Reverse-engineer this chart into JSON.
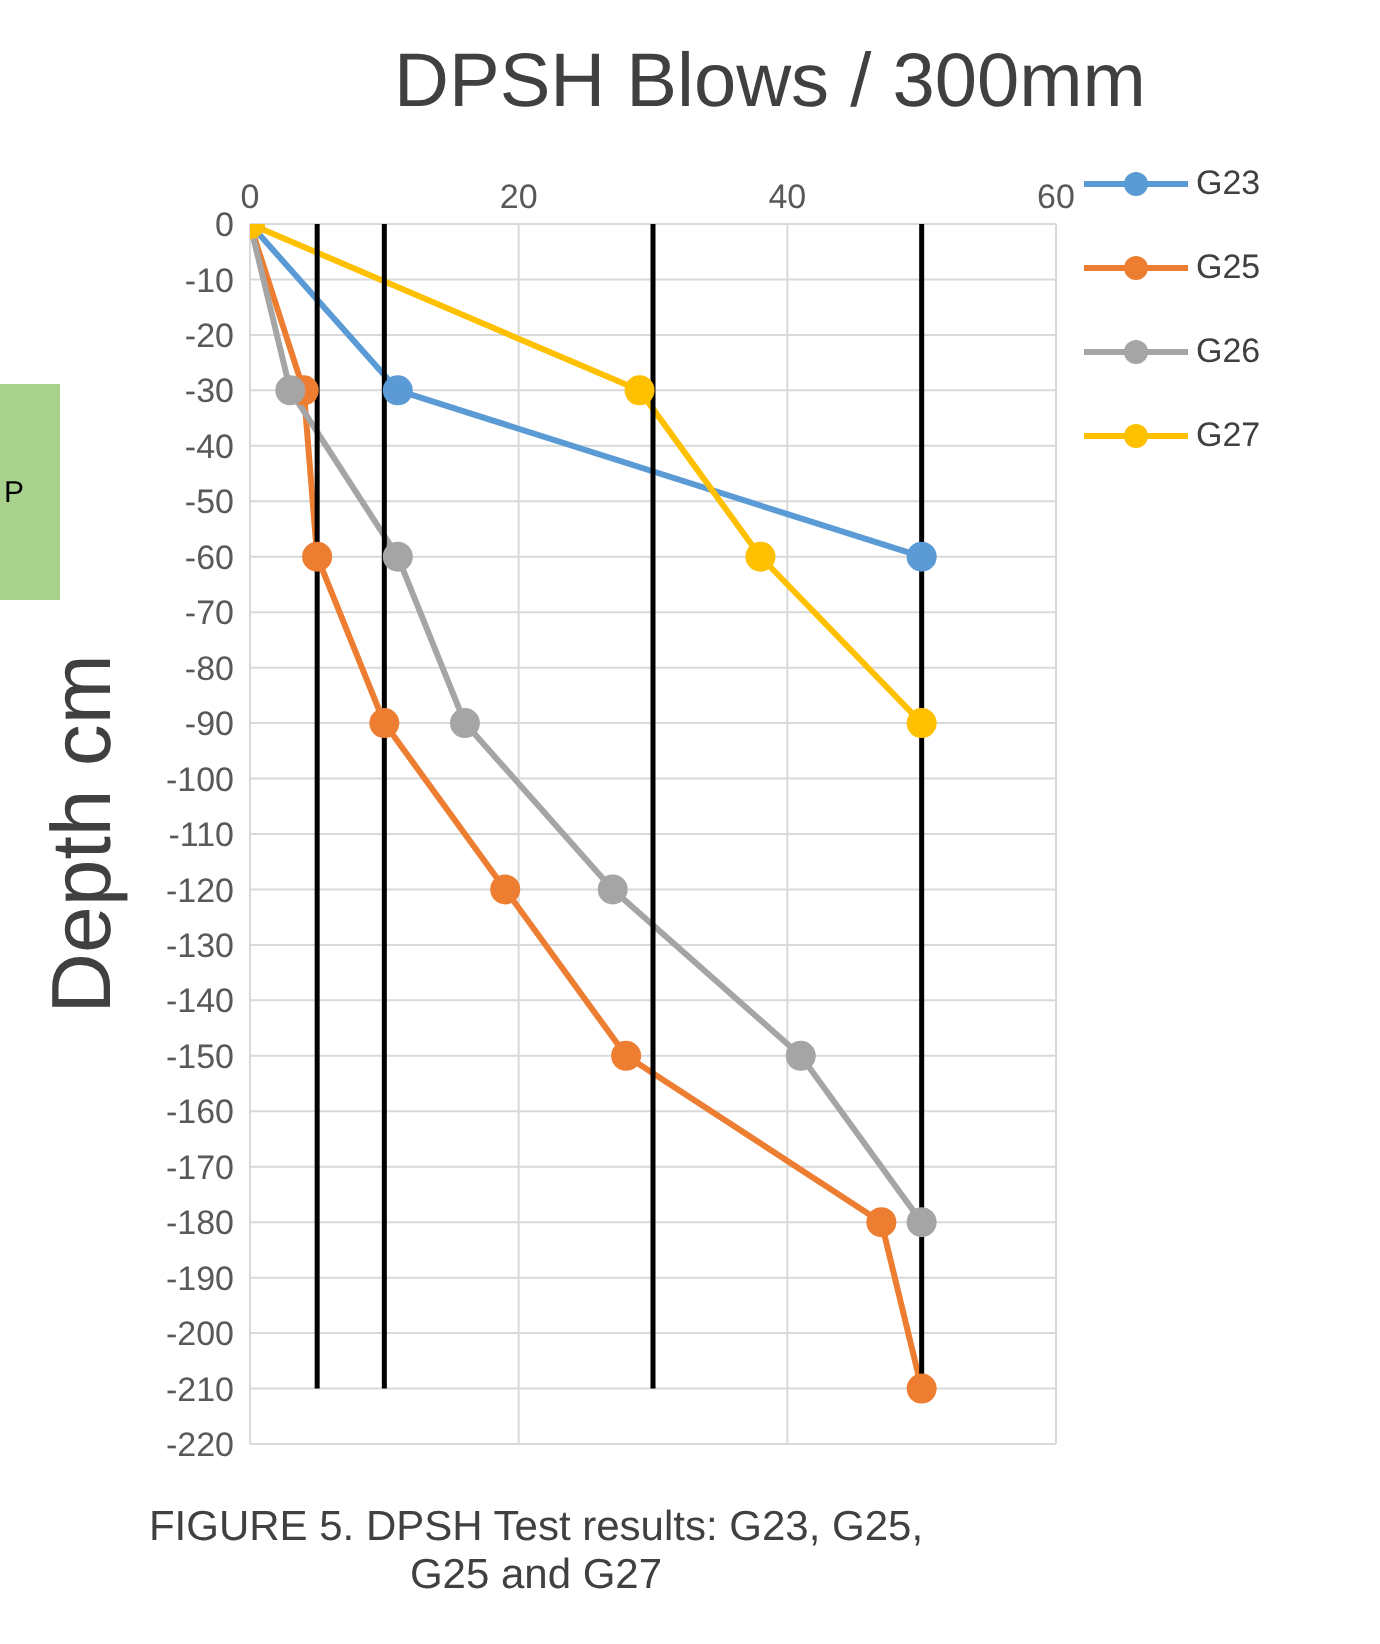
{
  "chart_data": {
    "type": "line",
    "title": "DPSH Blows / 300mm",
    "ylabel": "Depth cm",
    "annotations": [
      "P",
      "FIGURE 5. DPSH Test results: G23, G25, G25 and G27"
    ],
    "xlim": [
      0,
      60
    ],
    "xticks": [
      0,
      20,
      40,
      60
    ],
    "ylim": [
      -220,
      0
    ],
    "yticks": [
      0,
      -10,
      -20,
      -30,
      -40,
      -50,
      -60,
      -70,
      -80,
      -90,
      -100,
      -110,
      -120,
      -130,
      -140,
      -150,
      -160,
      -170,
      -180,
      -190,
      -200,
      -210,
      -220
    ],
    "grid": true,
    "legend": "top right",
    "marker": "circle",
    "line_style": "solid",
    "series": [
      {
        "name": "G23",
        "color": "#5b9bd5",
        "x": [
          0,
          11,
          50
        ],
        "values": [
          0,
          -30,
          -60
        ]
      },
      {
        "name": "G25",
        "color": "#ed7d31",
        "x": [
          0,
          4,
          5,
          10,
          19,
          28,
          47,
          50
        ],
        "values": [
          0,
          -30,
          -60,
          -90,
          -120,
          -150,
          -180,
          -210
        ]
      },
      {
        "name": "G26",
        "color": "#a5a5a5",
        "x": [
          0,
          3,
          11,
          16,
          27,
          41,
          50
        ],
        "values": [
          0,
          -30,
          -60,
          -90,
          -120,
          -150,
          -180
        ]
      },
      {
        "name": "G27",
        "color": "#ffc000",
        "x": [
          0,
          29,
          38,
          50
        ],
        "values": [
          0,
          -30,
          -60,
          -90
        ]
      },
      {
        "color": "#000000",
        "x": [
          5,
          5
        ],
        "values": [
          0,
          -210
        ],
        "marker": "none"
      },
      {
        "color": "#000000",
        "x": [
          10,
          10
        ],
        "values": [
          0,
          -210
        ],
        "marker": "none"
      },
      {
        "color": "#000000",
        "x": [
          30,
          30
        ],
        "values": [
          0,
          -210
        ],
        "marker": "none"
      },
      {
        "color": "#000000",
        "x": [
          50,
          50
        ],
        "values": [
          0,
          -210
        ],
        "marker": "none"
      }
    ]
  }
}
